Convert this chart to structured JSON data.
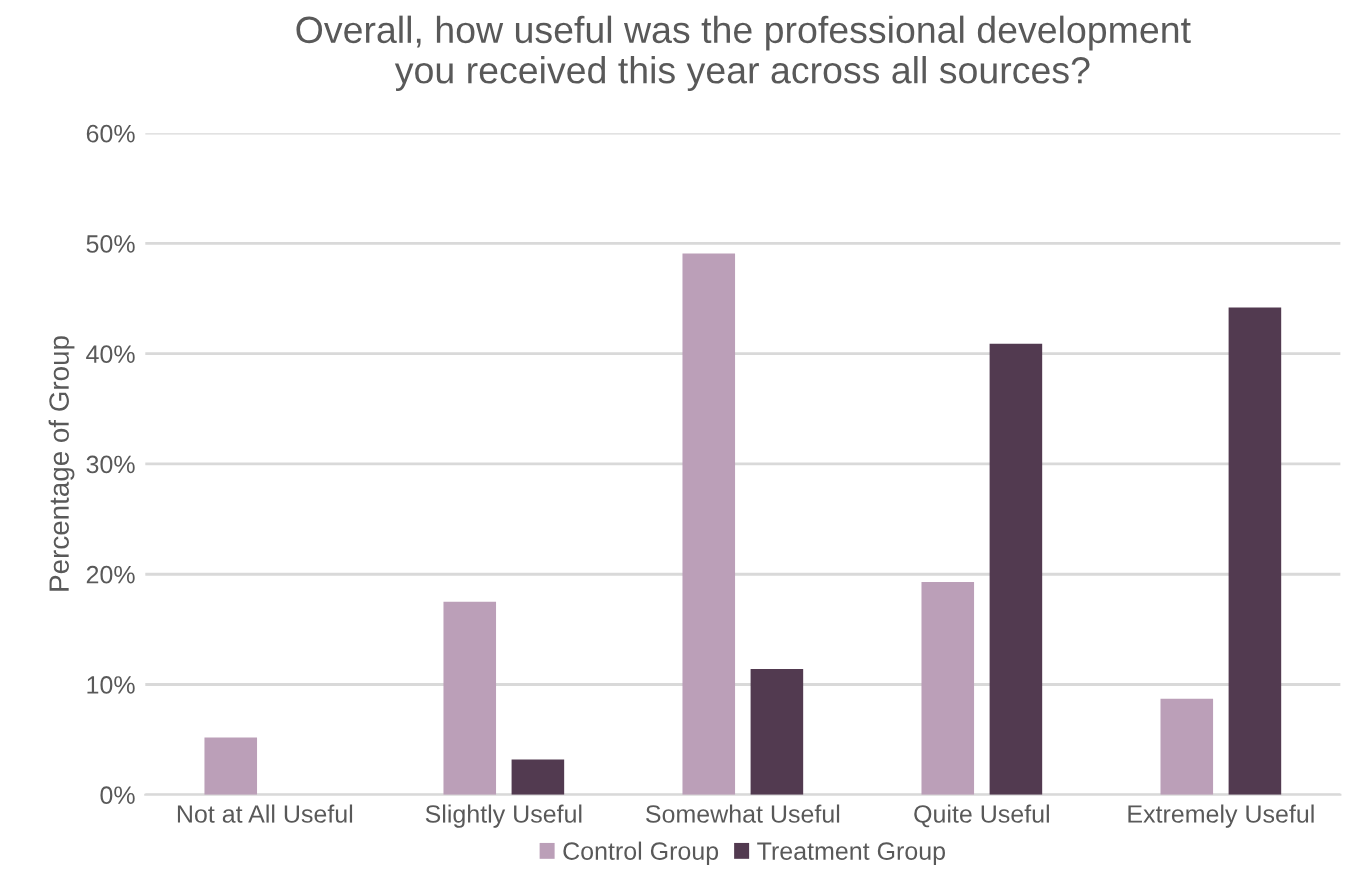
{
  "chart_data": {
    "type": "bar",
    "title": "Overall, how useful was the professional development\nyou received this year across all sources?",
    "ylabel": "Percentage of Group",
    "categories": [
      "Not at All Useful",
      "Slightly Useful",
      "Somewhat Useful",
      "Quite Useful",
      "Extremely Useful"
    ],
    "series": [
      {
        "name": "Control Group",
        "color": "#bb9fb8",
        "values": [
          5.2,
          17.5,
          49.1,
          19.3,
          8.7
        ]
      },
      {
        "name": "Treatment Group",
        "color": "#523a50",
        "values": [
          0,
          3.2,
          11.4,
          40.9,
          44.2
        ]
      }
    ],
    "ylim": [
      0,
      60
    ],
    "yticks": [
      {
        "value": 0,
        "label": "0%"
      },
      {
        "value": 10,
        "label": "10%"
      },
      {
        "value": 20,
        "label": "20%"
      },
      {
        "value": 30,
        "label": "30%"
      },
      {
        "value": 40,
        "label": "40%"
      },
      {
        "value": 50,
        "label": "50%"
      },
      {
        "value": 60,
        "label": "60%"
      }
    ],
    "grid": "y",
    "legend": "bottom"
  }
}
